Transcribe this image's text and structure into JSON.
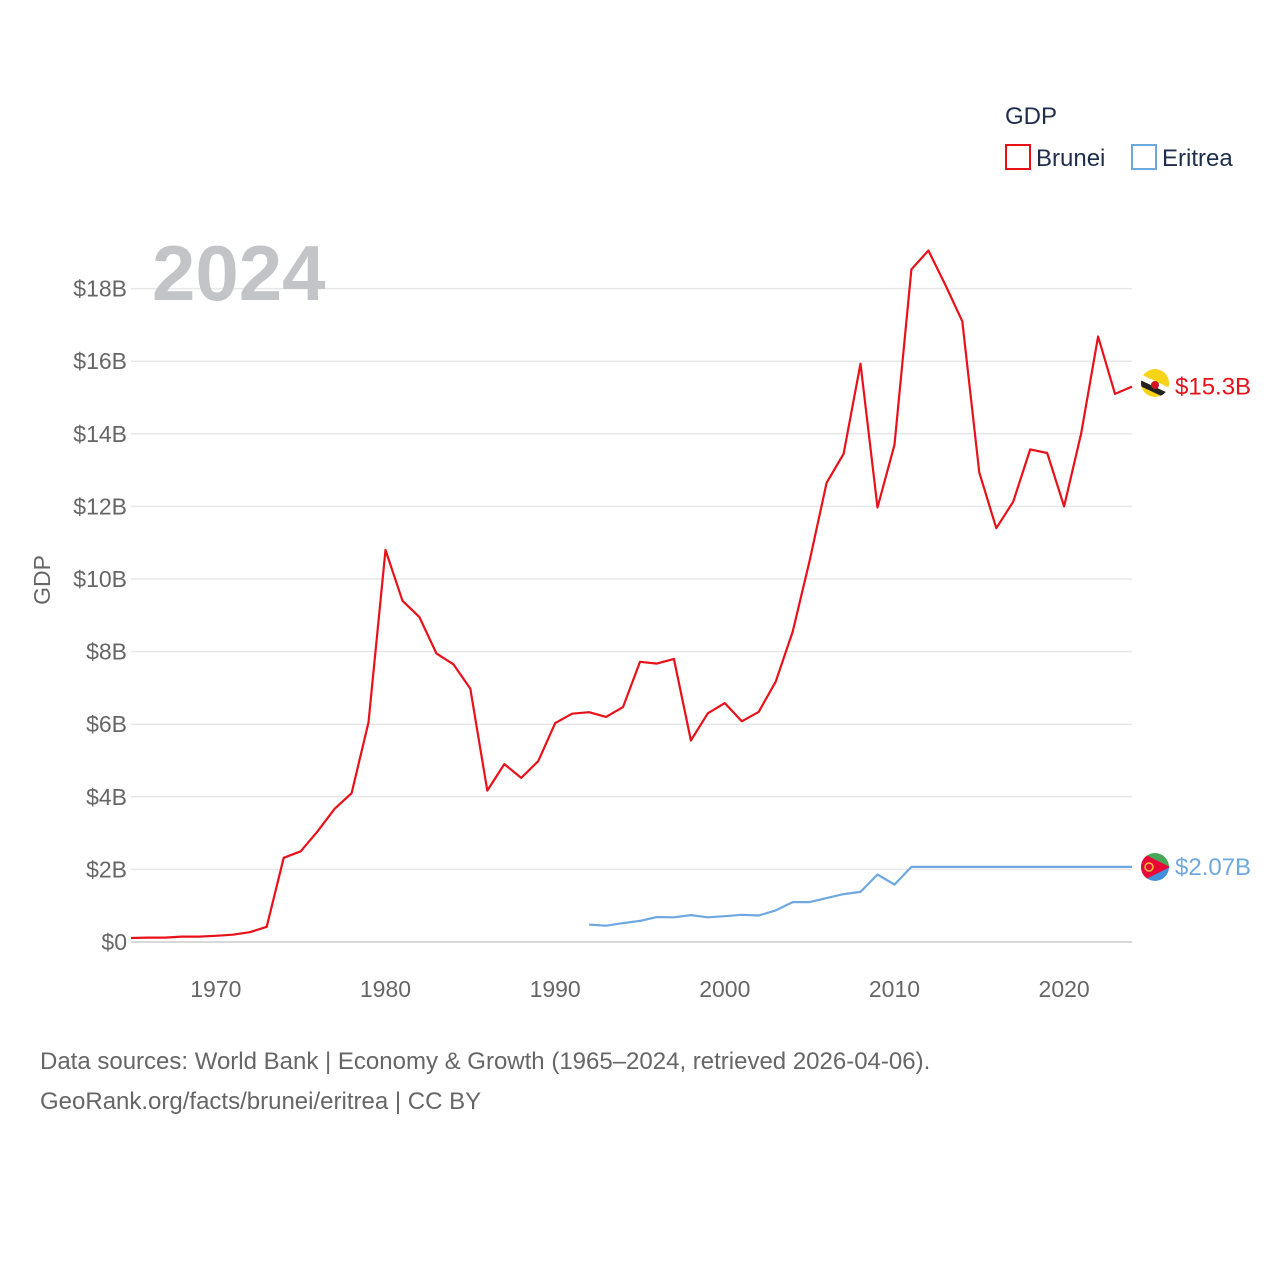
{
  "chart_data": {
    "type": "line",
    "year_label": "2024",
    "ylabel": "GDP",
    "xlabel": "",
    "xlim": [
      1965,
      2024
    ],
    "ylim": [
      0,
      19
    ],
    "y_unit": "billions USD",
    "x_ticks": [
      1970,
      1980,
      1990,
      2000,
      2010,
      2020
    ],
    "x_tick_labels": [
      "1970",
      "1980",
      "1990",
      "2000",
      "2010",
      "2020"
    ],
    "y_ticks": [
      0,
      2,
      4,
      6,
      8,
      10,
      12,
      14,
      16,
      18
    ],
    "y_tick_labels": [
      "$0",
      "$2B",
      "$4B",
      "$6B",
      "$8B",
      "$10B",
      "$12B",
      "$14B",
      "$16B",
      "$18B"
    ],
    "grid": true,
    "legend": {
      "title": "GDP",
      "placement": "top-right",
      "items": [
        "Brunei",
        "Eritrea"
      ]
    },
    "series": [
      {
        "name": "Brunei",
        "color": "#e8111a",
        "end_label": "$15.3B",
        "x": [
          1965,
          1966,
          1967,
          1968,
          1969,
          1970,
          1971,
          1972,
          1973,
          1974,
          1975,
          1976,
          1977,
          1978,
          1979,
          1980,
          1981,
          1982,
          1983,
          1984,
          1985,
          1986,
          1987,
          1988,
          1989,
          1990,
          1991,
          1992,
          1993,
          1994,
          1995,
          1996,
          1997,
          1998,
          1999,
          2000,
          2001,
          2002,
          2003,
          2004,
          2005,
          2006,
          2007,
          2008,
          2009,
          2010,
          2011,
          2012,
          2013,
          2014,
          2015,
          2016,
          2017,
          2018,
          2019,
          2020,
          2021,
          2022,
          2023,
          2024
        ],
        "values": [
          0.11,
          0.12,
          0.12,
          0.15,
          0.15,
          0.17,
          0.2,
          0.27,
          0.42,
          2.32,
          2.5,
          3.05,
          3.67,
          4.1,
          6.05,
          10.8,
          9.4,
          8.95,
          7.95,
          7.65,
          6.98,
          4.17,
          4.9,
          4.52,
          4.98,
          6.03,
          6.29,
          6.33,
          6.2,
          6.47,
          7.72,
          7.67,
          7.8,
          5.55,
          6.3,
          6.58,
          6.08,
          6.34,
          7.17,
          8.55,
          10.5,
          12.65,
          13.45,
          15.93,
          11.97,
          13.7,
          18.53,
          19.05,
          18.1,
          17.1,
          12.93,
          11.4,
          12.13,
          13.57,
          13.47,
          12.0,
          14.0,
          16.68,
          15.1,
          15.3
        ]
      },
      {
        "name": "Eritrea",
        "color": "#6fa8e0",
        "end_label": "$2.07B",
        "x": [
          1992,
          1993,
          1994,
          1995,
          1996,
          1997,
          1998,
          1999,
          2000,
          2001,
          2002,
          2003,
          2004,
          2005,
          2006,
          2007,
          2008,
          2009,
          2010,
          2011,
          2012,
          2013,
          2014,
          2015,
          2016,
          2017,
          2018,
          2019,
          2020,
          2021,
          2022,
          2023,
          2024
        ],
        "values": [
          0.48,
          0.45,
          0.52,
          0.58,
          0.69,
          0.68,
          0.74,
          0.68,
          0.71,
          0.75,
          0.73,
          0.87,
          1.1,
          1.1,
          1.21,
          1.32,
          1.38,
          1.86,
          1.58,
          2.07,
          2.07,
          2.07,
          2.07,
          2.07,
          2.07,
          2.07,
          2.07,
          2.07,
          2.07,
          2.07,
          2.07,
          2.07,
          2.07
        ]
      }
    ]
  },
  "footer": {
    "line1": "Data sources: World Bank | Economy & Growth (1965–2024, retrieved 2026-04-06).",
    "line2": "GeoRank.org/facts/brunei/eritrea | CC BY"
  }
}
